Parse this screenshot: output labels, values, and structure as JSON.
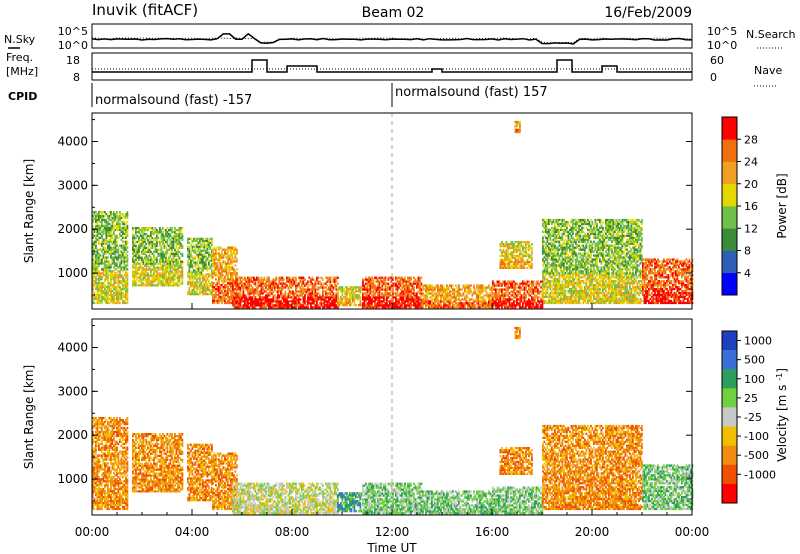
{
  "header": {
    "station": "Inuvik (fitACF)",
    "beam": "Beam 02",
    "date": "16/Feb/2009"
  },
  "noise_panel": {
    "left_label": "N.Sky",
    "right_label": "N.Search",
    "left_ticks": [
      "10^5",
      "10^0"
    ],
    "right_ticks": [
      "10^5",
      "10^0"
    ]
  },
  "freq_panel": {
    "left_label_line1": "Freq.",
    "left_label_line2": "[MHz]",
    "right_label": "Nave",
    "left_ticks": [
      "18",
      "8"
    ],
    "right_ticks": [
      "60",
      "0"
    ]
  },
  "cpid": {
    "label": "CPID",
    "segments": [
      {
        "text": "normalsound (fast) -157",
        "start_hour": 0
      },
      {
        "text": "normalsound (fast) 157",
        "start_hour": 12
      }
    ]
  },
  "time_axis": {
    "label": "Time UT",
    "ticks": [
      "00:00",
      "04:00",
      "08:00",
      "12:00",
      "16:00",
      "20:00",
      "00:00"
    ],
    "tick_hours": [
      0,
      4,
      8,
      12,
      16,
      20,
      24
    ]
  },
  "chart_data": [
    {
      "type": "heatmap",
      "name_id": "power-panel",
      "ylabel": "Slant Range [km]",
      "ylim": [
        180,
        4650
      ],
      "yticks": [
        1000,
        2000,
        3000,
        4000
      ],
      "xlim_hours": [
        0,
        24
      ],
      "colorbar": {
        "label": "Power [dB]",
        "tick_labels": [
          "4",
          "8",
          "12",
          "16",
          "20",
          "24",
          "28"
        ],
        "colors": [
          "#0000ff",
          "#2e5eb5",
          "#3a8c3a",
          "#6fbf4a",
          "#e5d800",
          "#f0a020",
          "#f07010",
          "#ff0000"
        ]
      },
      "regions": [
        {
          "t": [
            0.0,
            1.4
          ],
          "r": [
            300,
            2400
          ],
          "level": 3
        },
        {
          "t": [
            1.6,
            3.6
          ],
          "r": [
            700,
            2050
          ],
          "level": 3
        },
        {
          "t": [
            3.8,
            4.8
          ],
          "r": [
            500,
            1800
          ],
          "level": 3
        },
        {
          "t": [
            4.8,
            5.8
          ],
          "r": [
            300,
            1600
          ],
          "level": 5
        },
        {
          "t": [
            5.6,
            9.8
          ],
          "r": [
            200,
            900
          ],
          "level": 6
        },
        {
          "t": [
            9.8,
            10.8
          ],
          "r": [
            250,
            700
          ],
          "level": 4
        },
        {
          "t": [
            10.8,
            13.2
          ],
          "r": [
            200,
            900
          ],
          "level": 6
        },
        {
          "t": [
            13.2,
            16.0
          ],
          "r": [
            200,
            700
          ],
          "level": 5
        },
        {
          "t": [
            16.0,
            18.0
          ],
          "r": [
            200,
            800
          ],
          "level": 6
        },
        {
          "t": [
            16.3,
            17.6
          ],
          "r": [
            1100,
            1700
          ],
          "level": 4
        },
        {
          "t": [
            16.9,
            17.1
          ],
          "r": [
            4200,
            4450
          ],
          "level": 5
        },
        {
          "t": [
            18.0,
            22.0
          ],
          "r": [
            300,
            2200
          ],
          "level": 3
        },
        {
          "t": [
            22.0,
            24.0
          ],
          "r": [
            300,
            1300
          ],
          "level": 6
        }
      ]
    },
    {
      "type": "heatmap",
      "name_id": "velocity-panel",
      "ylabel": "Slant Range [km]",
      "ylim": [
        180,
        4650
      ],
      "yticks": [
        1000,
        2000,
        3000,
        4000
      ],
      "xlim_hours": [
        0,
        24
      ],
      "colorbar": {
        "label": "Velocity [m s^-1]",
        "tick_labels": [
          "1000",
          "500",
          "100",
          "25",
          "-25",
          "-100",
          "-500",
          "-1000"
        ],
        "colors": [
          "#1f3fbf",
          "#3a6fd8",
          "#2e9e5e",
          "#6fd040",
          "#c8c8c8",
          "#f0c000",
          "#f08c10",
          "#f05000",
          "#ff0000"
        ]
      },
      "regions": [
        {
          "t": [
            0.0,
            1.4
          ],
          "r": [
            300,
            2400
          ],
          "level": 6
        },
        {
          "t": [
            1.6,
            3.6
          ],
          "r": [
            700,
            2050
          ],
          "level": 6
        },
        {
          "t": [
            3.8,
            4.8
          ],
          "r": [
            500,
            1800
          ],
          "level": 6
        },
        {
          "t": [
            4.8,
            5.8
          ],
          "r": [
            300,
            1600
          ],
          "level": 6
        },
        {
          "t": [
            5.6,
            9.8
          ],
          "r": [
            200,
            900
          ],
          "level": 4
        },
        {
          "t": [
            9.8,
            10.8
          ],
          "r": [
            250,
            700
          ],
          "level": 2
        },
        {
          "t": [
            10.8,
            13.2
          ],
          "r": [
            200,
            900
          ],
          "level": 3
        },
        {
          "t": [
            13.2,
            16.0
          ],
          "r": [
            200,
            700
          ],
          "level": 3
        },
        {
          "t": [
            16.0,
            18.0
          ],
          "r": [
            200,
            800
          ],
          "level": 3
        },
        {
          "t": [
            16.3,
            17.6
          ],
          "r": [
            1100,
            1700
          ],
          "level": 6
        },
        {
          "t": [
            16.9,
            17.1
          ],
          "r": [
            4200,
            4450
          ],
          "level": 6
        },
        {
          "t": [
            18.0,
            22.0
          ],
          "r": [
            300,
            2200
          ],
          "level": 6
        },
        {
          "t": [
            22.0,
            24.0
          ],
          "r": [
            300,
            1300
          ],
          "level": 3
        }
      ]
    }
  ]
}
